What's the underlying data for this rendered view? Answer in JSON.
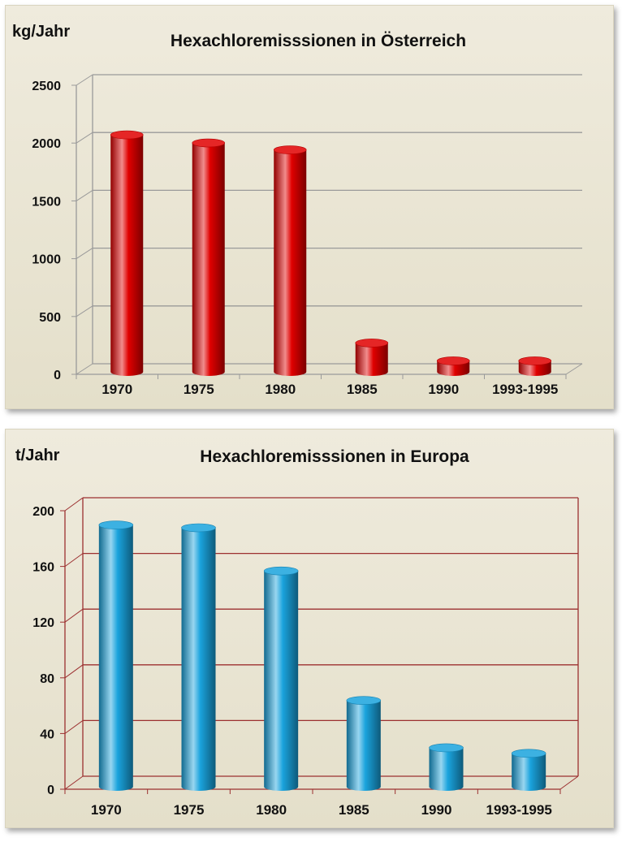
{
  "chart_data": [
    {
      "type": "bar",
      "title": "Hexachloremisssionen in Österreich",
      "ylabel": "kg/Jahr",
      "xlabel": "",
      "categories": [
        "1970",
        "1975",
        "1980",
        "1985",
        "1990",
        "1993-1995"
      ],
      "values": [
        2050,
        1980,
        1920,
        250,
        95,
        95
      ],
      "ylim": [
        0,
        2500
      ],
      "yticks": [
        "0",
        "500",
        "1000",
        "1500",
        "2000",
        "2500"
      ],
      "grid": true,
      "bar_color": "#e00000"
    },
    {
      "type": "bar",
      "title": "Hexachloremisssionen in Europa",
      "ylabel": "t/Jahr",
      "xlabel": "",
      "categories": [
        "1970",
        "1975",
        "1980",
        "1985",
        "1990",
        "1993-1995"
      ],
      "values": [
        188,
        186,
        155,
        62,
        28,
        24
      ],
      "ylim": [
        0,
        200
      ],
      "yticks": [
        "0",
        "40",
        "80",
        "120",
        "160",
        "200"
      ],
      "grid": true,
      "bar_color": "#1aa3dd"
    }
  ]
}
